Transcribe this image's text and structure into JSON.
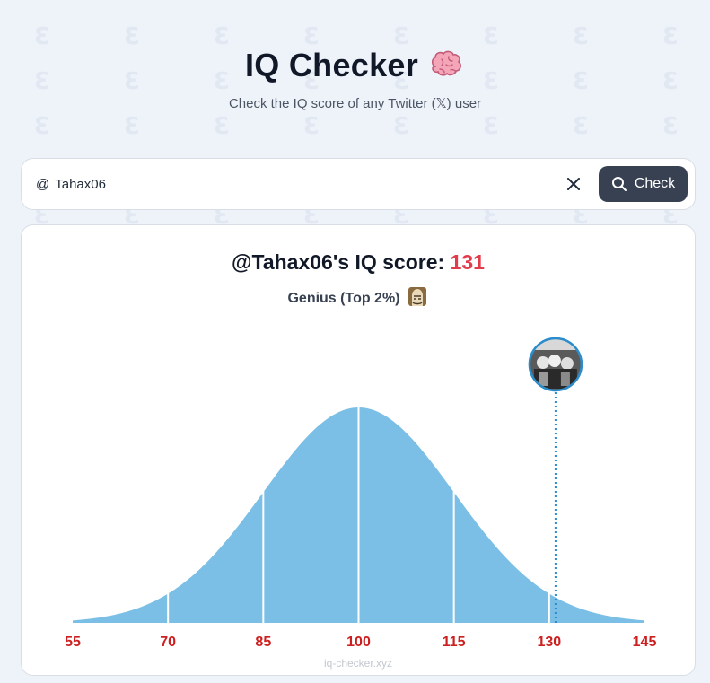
{
  "header": {
    "title": "IQ Checker",
    "subtitle": "Check the IQ score of any Twitter (𝕏) user"
  },
  "search": {
    "prefix": "@",
    "value": "Tahax06",
    "button_label": "Check"
  },
  "result": {
    "score_prefix": "@Tahax06's IQ score:",
    "score_value": "131",
    "rank_label": "Genius (Top 2%)",
    "watermark": "iq-checker.xyz"
  },
  "colors": {
    "curve_fill": "#7bbfe6",
    "tick_label": "#cc1f1f",
    "marker": "#2b8ccc",
    "score": "#e23b4b"
  },
  "chart_data": {
    "type": "area",
    "x_ticks": [
      55,
      70,
      85,
      100,
      115,
      130,
      145
    ],
    "xlim": [
      55,
      145
    ],
    "distribution": {
      "mean": 100,
      "sd": 15
    },
    "divider_lines": [
      70,
      85,
      100,
      115,
      130
    ],
    "marker_value": 131,
    "title": "",
    "xlabel": "",
    "ylabel": ""
  }
}
